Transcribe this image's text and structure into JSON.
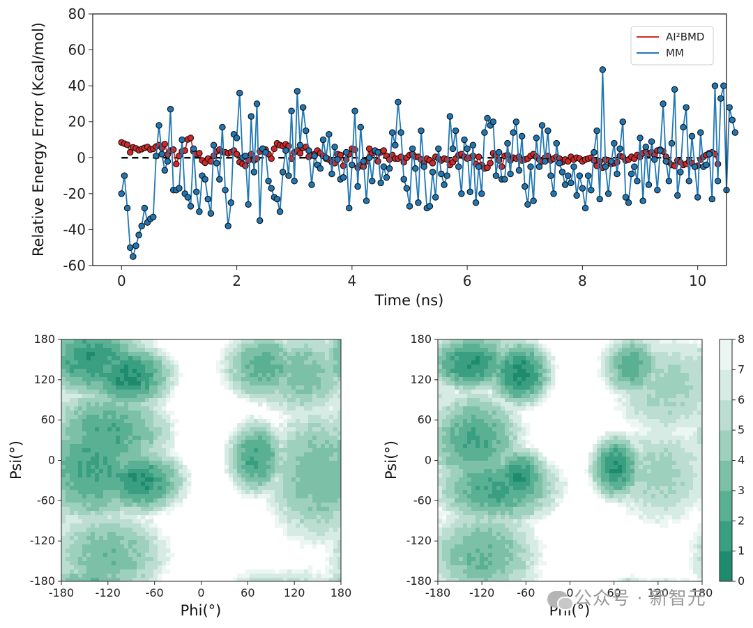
{
  "chart_data": [
    {
      "type": "line",
      "ylabel": "Relative Energy Error (Kcal/mol)",
      "xlabel": "Time (ns)",
      "xlim": [
        -0.5,
        10.5
      ],
      "ylim": [
        -60,
        80
      ],
      "xticks": [
        0,
        2,
        4,
        6,
        8,
        10
      ],
      "yticks": [
        -60,
        -40,
        -20,
        0,
        20,
        40,
        60,
        80
      ],
      "reference_line": {
        "y": 0,
        "style": "dashed",
        "color": "#000000"
      },
      "legend": {
        "position": "top-right",
        "entries": [
          "AI²BMD",
          "MM"
        ]
      },
      "series": [
        {
          "name": "AI²BMD",
          "color": "#d62728",
          "marker_face": "#d62728",
          "x_start": 0,
          "x_step": 0.05,
          "values": [
            8.5,
            7.8,
            7.2,
            3.0,
            5.8,
            5.2,
            4.2,
            4.8,
            5.5,
            6.0,
            4.5,
            5.0,
            6.2,
            7.0,
            5.5,
            7.6,
            1.8,
            4.0,
            4.5,
            -3.5,
            1.0,
            3.5,
            4.0,
            10.2,
            11.0,
            3.5,
            2.0,
            2.5,
            -1.5,
            -2.8,
            -0.5,
            -2.0,
            1.0,
            3.5,
            4.5,
            3.2,
            3.0,
            2.5,
            3.0,
            4.0,
            2.0,
            -2.5,
            -3.5,
            -4.5,
            -1.5,
            2.0,
            -1.5,
            -0.5,
            3.5,
            5.0,
            4.5,
            2.0,
            -0.5,
            5.0,
            8.0,
            7.0,
            6.5,
            7.5,
            6.5,
            -0.5,
            3.0,
            4.0,
            2.5,
            5.5,
            6.0,
            0.5,
            1.5,
            2.0,
            4.0,
            2.5,
            1.0,
            -0.5,
            -1.0,
            -2.5,
            -3.0,
            2.0,
            1.5,
            -4.5,
            -1.0,
            2.0,
            5.0,
            4.5,
            -5.5,
            -4.0,
            -5.0,
            -2.0,
            5.0,
            2.5,
            3.5,
            -2.0,
            3.0,
            4.0,
            1.0,
            -1.0,
            1.5,
            -0.5,
            -0.5,
            0.5,
            -2.5,
            0.0,
            1.5,
            2.0,
            0.5,
            0.5,
            -1.0,
            -3.0,
            -0.5,
            -1.5,
            -3.0,
            0.5,
            -0.5,
            -1.5,
            -0.5,
            -1.0,
            -4.0,
            -2.5,
            -0.5,
            1.5,
            2.0,
            0.5,
            -0.5,
            0.0,
            1.0,
            -3.5,
            0.5,
            -4.0,
            -6.0,
            -5.5,
            -3.0,
            2.5,
            1.5,
            -1.5,
            -5.0,
            1.0,
            1.5,
            -1.5,
            0.0,
            -0.5,
            0.5,
            -1.5,
            -1.0,
            -0.5,
            1.0,
            2.0,
            0.5,
            -1.0,
            -2.0,
            0.0,
            1.0,
            -1.5,
            -0.5,
            0.5,
            -0.5,
            -2.5,
            -1.0,
            -2.0,
            0.5,
            -1.0,
            0.0,
            -0.5,
            -2.0,
            -1.0,
            -0.5,
            0.0,
            -1.5,
            -4.5,
            -2.0,
            -5.5,
            -1.0,
            -1.5,
            -3.5,
            -3.0,
            -2.5,
            1.0,
            0.5,
            -1.5,
            -1.0,
            0.5,
            -0.5,
            1.5,
            0.5,
            2.5,
            3.5,
            2.0,
            3.0,
            1.5,
            4.0,
            4.5,
            3.5,
            0.5,
            -2.5,
            -4.0,
            -4.5,
            -1.5,
            -2.5,
            -4.0,
            -3.5,
            -2.0,
            -3.0,
            -5.0,
            -4.5,
            -1.0,
            0.5,
            1.5,
            2.5,
            3.0,
            2.0,
            -3.5
          ]
        },
        {
          "name": "MM",
          "color": "#1f77b4",
          "marker_face": "#1f77b4",
          "x_start": 0,
          "x_step": 0.05,
          "values": [
            -20,
            -10,
            -28,
            -50,
            -55,
            -49,
            -43,
            -38,
            -28,
            -36,
            -34,
            -33,
            1,
            18,
            2,
            -7,
            -2,
            27,
            -18,
            -18,
            -17,
            10,
            -20,
            -22,
            -27,
            5,
            -19,
            -30,
            -10,
            -12,
            -23,
            -31,
            7,
            -3,
            -12,
            17,
            -18,
            -38,
            -25,
            13,
            11,
            36,
            0,
            1,
            -26,
            23,
            -8,
            30,
            -35,
            5,
            3,
            -13,
            -17,
            -22,
            -23,
            -30,
            -8,
            4,
            -10,
            26,
            -13,
            37,
            7,
            28,
            15,
            4,
            -15,
            1,
            -4,
            -6,
            10,
            0,
            13,
            -9,
            6,
            -1,
            -12,
            -11,
            3,
            -28,
            -4,
            26,
            -16,
            17,
            -2,
            -24,
            0,
            -13,
            4,
            3,
            -14,
            -5,
            -11,
            -6,
            14,
            7,
            31,
            14,
            -12,
            -17,
            -27,
            5,
            -6,
            -25,
            15,
            -5,
            -28,
            -27,
            -8,
            -22,
            5,
            -9,
            -15,
            -10,
            23,
            5,
            15,
            -5,
            -20,
            10,
            5,
            -19,
            7,
            -25,
            -5,
            -20,
            14,
            22,
            18,
            20,
            -10,
            3,
            -12,
            -12,
            8,
            -9,
            14,
            20,
            -7,
            12,
            -16,
            -26,
            -5,
            -24,
            11,
            -5,
            18,
            -2,
            15,
            -10,
            -20,
            8,
            -3,
            -8,
            -15,
            -10,
            -14,
            -5,
            -21,
            -10,
            -17,
            -28,
            -10,
            -18,
            3,
            15,
            -23,
            49,
            -5,
            -20,
            -2,
            8,
            -9,
            5,
            20,
            -22,
            -25,
            -9,
            -5,
            -13,
            11,
            -24,
            6,
            -15,
            9,
            -1,
            -18,
            4,
            30,
            -2,
            -13,
            8,
            38,
            -21,
            -8,
            17,
            28,
            -13,
            12,
            -5,
            -22,
            14,
            -5,
            -4,
            2,
            -23,
            40,
            -13,
            33,
            40,
            -18,
            28,
            21,
            14
          ]
        }
      ]
    },
    {
      "type": "heatmap",
      "xlabel": "Phi(°)",
      "ylabel": "Psi(°)",
      "xlim": [
        -180,
        180
      ],
      "ylim": [
        -180,
        180
      ],
      "xticks": [
        -180,
        -120,
        -60,
        0,
        60,
        120,
        180
      ],
      "yticks": [
        -180,
        -120,
        -60,
        0,
        60,
        120,
        180
      ],
      "basins": [
        {
          "phi": -95,
          "psi": 125,
          "level": 0.8,
          "sphi": 30,
          "spsi": 25
        },
        {
          "phi": -140,
          "psi": 150,
          "level": 1.2,
          "sphi": 35,
          "spsi": 30
        },
        {
          "phi": -80,
          "psi": -30,
          "level": 1.0,
          "sphi": 30,
          "spsi": 25
        },
        {
          "phi": -140,
          "psi": -10,
          "level": 1.8,
          "sphi": 40,
          "spsi": 45
        },
        {
          "phi": -120,
          "psi": 40,
          "level": 2.2,
          "sphi": 45,
          "spsi": 40
        },
        {
          "phi": -120,
          "psi": -140,
          "level": 3.2,
          "sphi": 45,
          "spsi": 40
        },
        {
          "phi": 70,
          "psi": 5,
          "level": 1.8,
          "sphi": 20,
          "spsi": 30
        },
        {
          "phi": 80,
          "psi": 140,
          "level": 2.5,
          "sphi": 30,
          "spsi": 30
        },
        {
          "phi": 150,
          "psi": -20,
          "level": 3.2,
          "sphi": 40,
          "spsi": 60
        },
        {
          "phi": 130,
          "psi": 130,
          "level": 3.5,
          "sphi": 40,
          "spsi": 40
        }
      ]
    },
    {
      "type": "heatmap",
      "xlabel": "Phi(°)",
      "ylabel": "Psi(°)",
      "xlim": [
        -180,
        180
      ],
      "ylim": [
        -180,
        180
      ],
      "xticks": [
        -180,
        -120,
        -60,
        0,
        60,
        120,
        180
      ],
      "yticks": [
        -180,
        -120,
        -60,
        0,
        60,
        120,
        180
      ],
      "colorbar": {
        "ticks": [
          0,
          1,
          2,
          3,
          4,
          5,
          6,
          7,
          8
        ],
        "min": 0,
        "max": 8
      },
      "basins": [
        {
          "phi": -70,
          "psi": 130,
          "level": 0.7,
          "sphi": 22,
          "spsi": 25
        },
        {
          "phi": -135,
          "psi": 145,
          "level": 1.0,
          "sphi": 30,
          "spsi": 22
        },
        {
          "phi": -70,
          "psi": -25,
          "level": 0.9,
          "sphi": 20,
          "spsi": 22
        },
        {
          "phi": -130,
          "psi": 30,
          "level": 2.0,
          "sphi": 35,
          "spsi": 40
        },
        {
          "phi": -100,
          "psi": -40,
          "level": 1.8,
          "sphi": 45,
          "spsi": 30
        },
        {
          "phi": -120,
          "psi": -140,
          "level": 3.0,
          "sphi": 45,
          "spsi": 40
        },
        {
          "phi": 60,
          "psi": -10,
          "level": 1.0,
          "sphi": 18,
          "spsi": 25
        },
        {
          "phi": 80,
          "psi": 140,
          "level": 2.3,
          "sphi": 22,
          "spsi": 25
        },
        {
          "phi": 130,
          "psi": 110,
          "level": 4.5,
          "sphi": 50,
          "spsi": 50
        },
        {
          "phi": 120,
          "psi": -20,
          "level": 4.6,
          "sphi": 45,
          "spsi": 50
        }
      ]
    }
  ],
  "colormap": [
    "#1e8a6e",
    "#399f80",
    "#5ab093",
    "#7cc0a8",
    "#9dd0bd",
    "#bcded2",
    "#d6ebe3",
    "#ecf6f2"
  ],
  "watermark": {
    "text": "公众号 · 新智元",
    "icon": "wechat-icon"
  }
}
